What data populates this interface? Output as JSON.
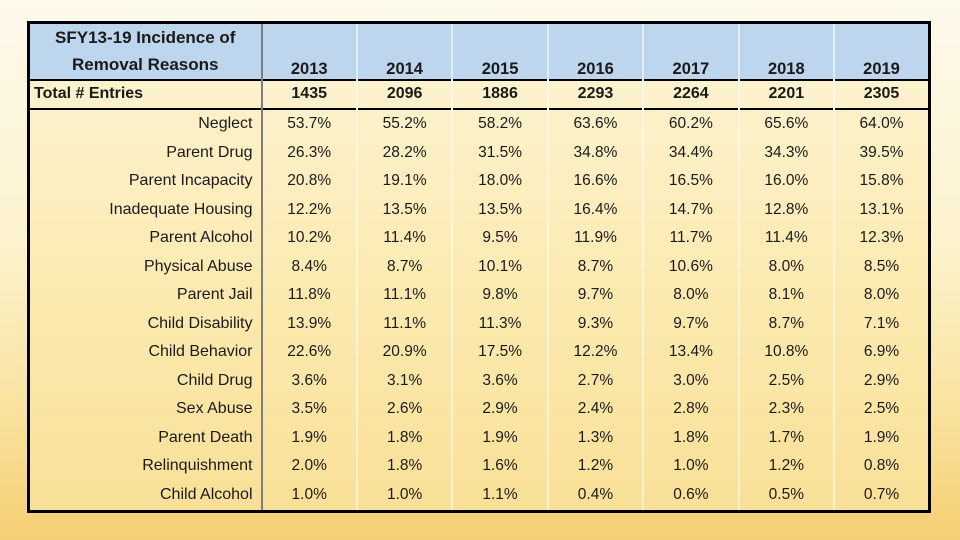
{
  "slide": {
    "background_top_color": "#fdf9ec",
    "background_bottom_color": "#f5cf74"
  },
  "table": {
    "title_line1": "SFY13-19 Incidence of",
    "title_line2": "Removal Reasons",
    "total_label": "Total # Entries",
    "header_bg_color": "#bdd6ed",
    "body_bg_top_color": "#fdf4d6",
    "body_bg_bottom_color": "#f9e097",
    "text_color": "#1a1a1a"
  },
  "chart_data": {
    "type": "table",
    "title": "SFY13-19 Incidence of Removal Reasons",
    "unit": "percent",
    "categories": [
      "2013",
      "2014",
      "2015",
      "2016",
      "2017",
      "2018",
      "2019"
    ],
    "total_entries_label": "Total # Entries",
    "total_entries": [
      1435,
      2096,
      1886,
      2293,
      2264,
      2201,
      2305
    ],
    "series": [
      {
        "name": "Neglect",
        "values": [
          53.7,
          55.2,
          58.2,
          63.6,
          60.2,
          65.6,
          64.0
        ]
      },
      {
        "name": "Parent Drug",
        "values": [
          26.3,
          28.2,
          31.5,
          34.8,
          34.4,
          34.3,
          39.5
        ]
      },
      {
        "name": "Parent Incapacity",
        "values": [
          20.8,
          19.1,
          18.0,
          16.6,
          16.5,
          16.0,
          15.8
        ]
      },
      {
        "name": "Inadequate Housing",
        "values": [
          12.2,
          13.5,
          13.5,
          16.4,
          14.7,
          12.8,
          13.1
        ]
      },
      {
        "name": "Parent Alcohol",
        "values": [
          10.2,
          11.4,
          9.5,
          11.9,
          11.7,
          11.4,
          12.3
        ]
      },
      {
        "name": "Physical Abuse",
        "values": [
          8.4,
          8.7,
          10.1,
          8.7,
          10.6,
          8.0,
          8.5
        ]
      },
      {
        "name": "Parent Jail",
        "values": [
          11.8,
          11.1,
          9.8,
          9.7,
          8.0,
          8.1,
          8.0
        ]
      },
      {
        "name": "Child Disability",
        "values": [
          13.9,
          11.1,
          11.3,
          9.3,
          9.7,
          8.7,
          7.1
        ]
      },
      {
        "name": "Child Behavior",
        "values": [
          22.6,
          20.9,
          17.5,
          12.2,
          13.4,
          10.8,
          6.9
        ]
      },
      {
        "name": "Child Drug",
        "values": [
          3.6,
          3.1,
          3.6,
          2.7,
          3.0,
          2.5,
          2.9
        ]
      },
      {
        "name": "Sex Abuse",
        "values": [
          3.5,
          2.6,
          2.9,
          2.4,
          2.8,
          2.3,
          2.5
        ]
      },
      {
        "name": "Parent Death",
        "values": [
          1.9,
          1.8,
          1.9,
          1.3,
          1.8,
          1.7,
          1.9
        ]
      },
      {
        "name": "Relinquishment",
        "values": [
          2.0,
          1.8,
          1.6,
          1.2,
          1.0,
          1.2,
          0.8
        ]
      },
      {
        "name": "Child Alcohol",
        "values": [
          1.0,
          1.0,
          1.1,
          0.4,
          0.6,
          0.5,
          0.7
        ]
      }
    ]
  }
}
